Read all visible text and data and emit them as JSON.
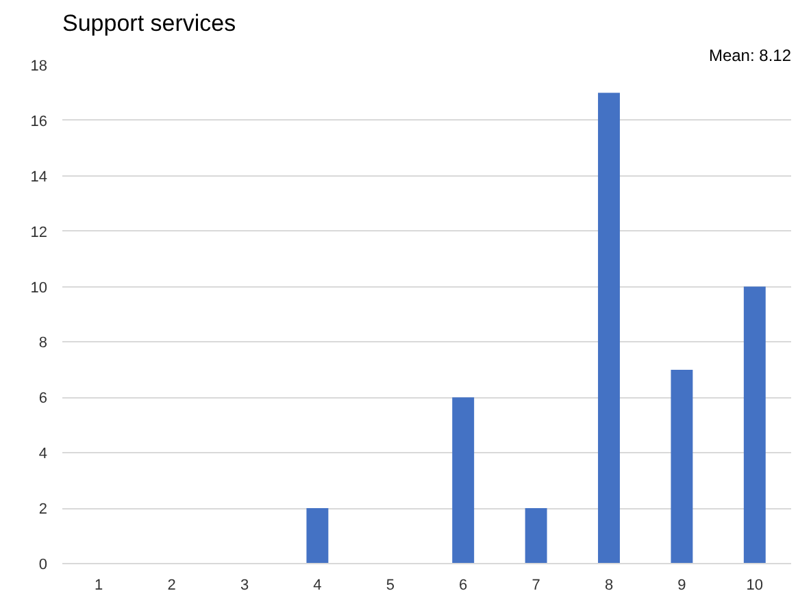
{
  "chart_data": {
    "type": "bar",
    "title": "Support services",
    "annotations": [
      "Mean: 8.12"
    ],
    "categories": [
      "1",
      "2",
      "3",
      "4",
      "5",
      "6",
      "7",
      "8",
      "9",
      "10"
    ],
    "values": [
      0,
      0,
      0,
      2,
      0,
      6,
      2,
      17,
      7,
      10
    ],
    "color": "#4472c4",
    "ylim": [
      0,
      18
    ],
    "yticks": [
      0,
      2,
      4,
      6,
      8,
      10,
      12,
      14,
      16,
      18
    ],
    "grid": "y"
  }
}
